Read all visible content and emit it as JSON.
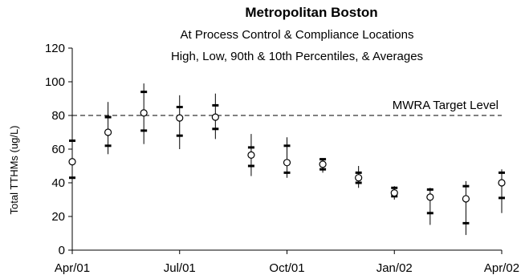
{
  "chart_data": {
    "type": "scatter",
    "title": "Metropolitan Boston",
    "subtitle_lines": [
      "At Process Control & Compliance Locations",
      "High, Low, 90th & 10th Percentiles, & Averages"
    ],
    "xlabel": "",
    "ylabel": "Total TTHMs (ug/L)",
    "ylim": [
      0,
      120
    ],
    "y_ticks": [
      0,
      20,
      40,
      60,
      80,
      100,
      120
    ],
    "x_tick_labels": [
      "Apr/01",
      "Jul/01",
      "Oct/01",
      "Jan/02",
      "Apr/02"
    ],
    "grid": false,
    "reference_line": {
      "value": 80,
      "label": "MWRA Target Level"
    },
    "points": [
      {
        "x": "2001-04",
        "low": 40,
        "p10": 43,
        "avg": 52.5,
        "p90": 65,
        "high": 68
      },
      {
        "x": "2001-05",
        "low": 57,
        "p10": 62,
        "avg": 70,
        "p90": 79,
        "high": 88
      },
      {
        "x": "2001-06",
        "low": 63,
        "p10": 71,
        "avg": 81.5,
        "p90": 94,
        "high": 99
      },
      {
        "x": "2001-07",
        "low": 60,
        "p10": 68,
        "avg": 78.5,
        "p90": 85,
        "high": 92
      },
      {
        "x": "2001-08",
        "low": 66,
        "p10": 72,
        "avg": 79,
        "p90": 86,
        "high": 93
      },
      {
        "x": "2001-09",
        "low": 44,
        "p10": 50,
        "avg": 56.5,
        "p90": 61,
        "high": 69
      },
      {
        "x": "2001-10",
        "low": 43,
        "p10": 46,
        "avg": 52,
        "p90": 62,
        "high": 67
      },
      {
        "x": "2001-11",
        "low": 46,
        "p10": 48,
        "avg": 51,
        "p90": 54,
        "high": 54
      },
      {
        "x": "2001-12",
        "low": 37,
        "p10": 40,
        "avg": 43,
        "p90": 46,
        "high": 50
      },
      {
        "x": "2002-01",
        "low": 30,
        "p10": 32,
        "avg": 34,
        "p90": 37,
        "high": 38
      },
      {
        "x": "2002-02",
        "low": 15,
        "p10": 22,
        "avg": 31.5,
        "p90": 36,
        "high": 37
      },
      {
        "x": "2002-03",
        "low": 9,
        "p10": 16,
        "avg": 30.5,
        "p90": 38,
        "high": 41
      },
      {
        "x": "2002-04",
        "low": 22,
        "p10": 31,
        "avg": 40,
        "p90": 46,
        "high": 48
      }
    ]
  }
}
